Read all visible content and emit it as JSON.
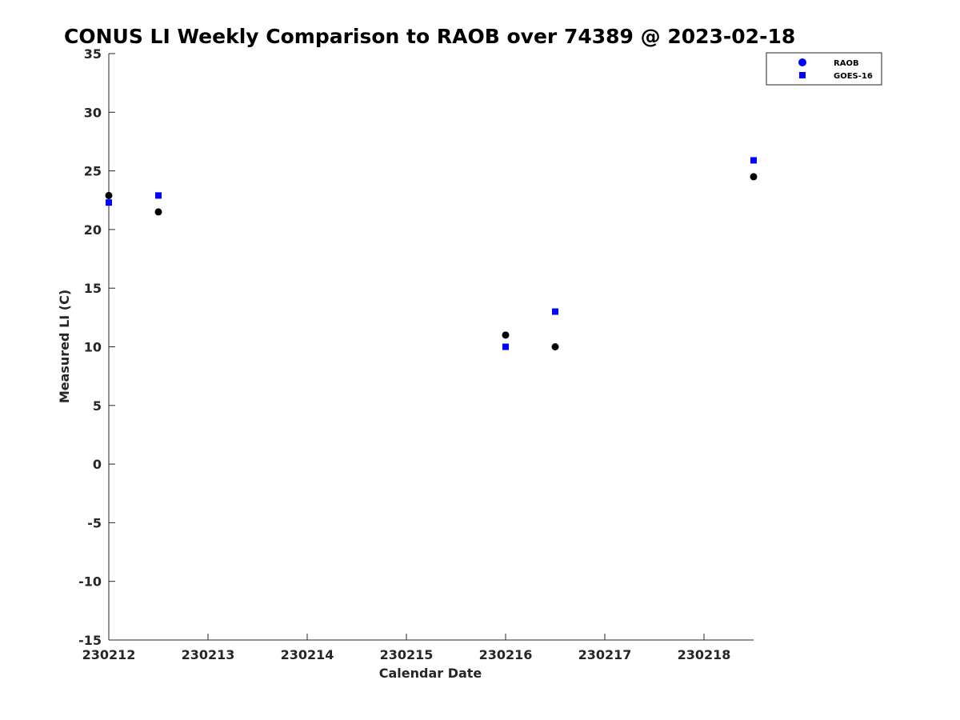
{
  "chart_data": {
    "type": "scatter",
    "title": "CONUS LI Weekly Comparison to RAOB over 74389 @ 2023-02-18",
    "xlabel": "Calendar Date",
    "ylabel": "Measured LI (C)",
    "xlim": [
      230212,
      230218.5
    ],
    "ylim": [
      -15,
      35
    ],
    "x_ticks": [
      230212,
      230213,
      230214,
      230215,
      230216,
      230217,
      230218
    ],
    "x_tick_labels": [
      "230212",
      "230213",
      "230214",
      "230215",
      "230216",
      "230217",
      "230218"
    ],
    "y_ticks": [
      -15,
      -10,
      -5,
      0,
      5,
      10,
      15,
      20,
      25,
      30,
      35
    ],
    "y_tick_labels": [
      "-15",
      "-10",
      "-5",
      "0",
      "5",
      "10",
      "15",
      "20",
      "25",
      "30",
      "35"
    ],
    "grid": false,
    "legend_position": "top-right",
    "series": [
      {
        "name": "RAOB",
        "marker": "circle",
        "legend_color": "#0000ff",
        "color": "#000000",
        "points": [
          {
            "x": 230212.0,
            "y": 22.9
          },
          {
            "x": 230212.5,
            "y": 21.5
          },
          {
            "x": 230216.0,
            "y": 11.0
          },
          {
            "x": 230216.5,
            "y": 10.0
          },
          {
            "x": 230218.5,
            "y": 24.5
          }
        ]
      },
      {
        "name": "GOES-16",
        "marker": "square",
        "legend_color": "#0000ff",
        "color": "#0000ff",
        "points": [
          {
            "x": 230212.0,
            "y": 22.3
          },
          {
            "x": 230212.5,
            "y": 22.9
          },
          {
            "x": 230216.0,
            "y": 10.0
          },
          {
            "x": 230216.5,
            "y": 13.0
          },
          {
            "x": 230218.5,
            "y": 25.9
          }
        ]
      }
    ]
  }
}
